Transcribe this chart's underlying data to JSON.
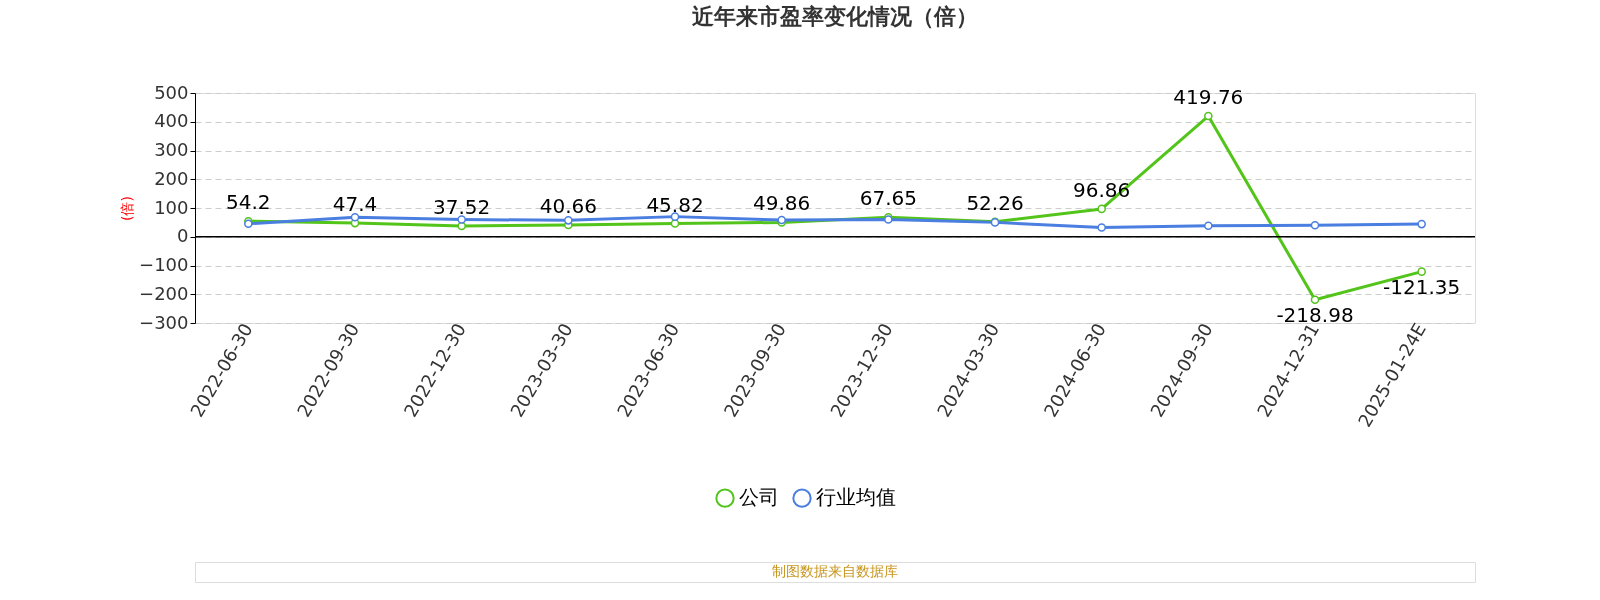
{
  "chart_data": {
    "type": "line",
    "title": "近年来市盈率变化情况（倍）",
    "ylabel": "(倍)",
    "categories": [
      "2022-06-30",
      "2022-09-30",
      "2022-12-30",
      "2023-03-30",
      "2023-06-30",
      "2023-09-30",
      "2023-12-30",
      "2024-03-30",
      "2024-06-30",
      "2024-09-30",
      "2024-12-31",
      "2025-01-24E"
    ],
    "series": [
      {
        "name": "公司",
        "color": "#52c41a",
        "values": [
          54.2,
          47.4,
          37.52,
          40.66,
          45.82,
          49.86,
          67.65,
          52.26,
          96.86,
          419.76,
          -218.98,
          -121.35
        ],
        "value_labels": [
          "54.2",
          "47.4",
          "37.52",
          "40.66",
          "45.82",
          "49.86",
          "67.65",
          "52.26",
          "96.86",
          "419.76",
          "-218.98",
          "-121.35"
        ]
      },
      {
        "name": "行业均值",
        "color": "#4a7ee0",
        "values": [
          45,
          68,
          60,
          57,
          70,
          58,
          60,
          50,
          32,
          38,
          40,
          44
        ]
      }
    ],
    "ylim": [
      -300,
      500
    ],
    "yticks": [
      -300,
      -200,
      -100,
      0,
      100,
      200,
      300,
      400,
      500
    ],
    "grid": "y",
    "legend": "bottom",
    "marker": "circle",
    "line_style": "solid",
    "annotations": [
      "制图数据来自数据库"
    ]
  }
}
